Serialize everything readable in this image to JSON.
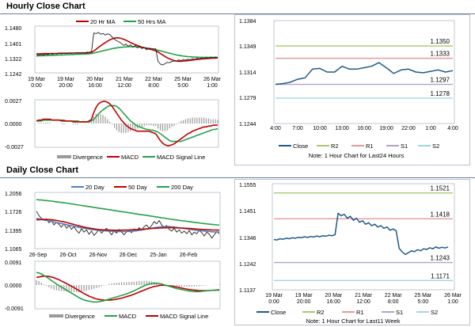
{
  "hourly": {
    "title": "Hourly Close Chart",
    "price": {
      "legend": [
        "20 Hr MA",
        "50 Hrs MA"
      ],
      "y_ticks": [
        "1.1480",
        "1.1401",
        "1.1322",
        "1.1242"
      ],
      "x_ticks": [
        "19 Mar\n0:00",
        "19 Mar\n20:00",
        "20 Mar\n16:00",
        "21 Mar\n12:00",
        "22 Mar\n8:00",
        "25 Mar\n5:00",
        "26 Mar\n1:00"
      ],
      "ylim": [
        1.1242,
        1.148
      ],
      "close": [
        1.1335,
        1.1333,
        1.1336,
        1.1334,
        1.1338,
        1.1336,
        1.134,
        1.1337,
        1.1341,
        1.1339,
        1.1342,
        1.134,
        1.1343,
        1.1341,
        1.1344,
        1.1342,
        1.1345,
        1.1343,
        1.1347,
        1.1344,
        1.1347,
        1.1345,
        1.1349,
        1.1348,
        1.1352,
        1.1452,
        1.1448,
        1.1455,
        1.1445,
        1.1449,
        1.1441,
        1.1447,
        1.1443,
        1.143,
        1.1418,
        1.141,
        1.1404,
        1.1396,
        1.1385,
        1.1392,
        1.138,
        1.1388,
        1.1376,
        1.1384,
        1.1372,
        1.1379,
        1.1368,
        1.1374,
        1.1362,
        1.1369,
        1.1368,
        1.1366,
        1.1367,
        1.13,
        1.1285,
        1.128,
        1.1286,
        1.1294,
        1.1292,
        1.1298,
        1.1302,
        1.13,
        1.1307,
        1.1303,
        1.1309,
        1.1306,
        1.1311,
        1.1308,
        1.1314,
        1.131,
        1.1316,
        1.1313,
        1.1318,
        1.1314,
        1.132,
        1.1316,
        1.1322,
        1.1318,
        1.1322,
        1.132
      ],
      "ma20": [
        1.134,
        1.134,
        1.134,
        1.1341,
        1.1341,
        1.1341,
        1.1341,
        1.1342,
        1.1342,
        1.1342,
        1.1343,
        1.1343,
        1.1343,
        1.1343,
        1.1344,
        1.1344,
        1.1344,
        1.1344,
        1.1345,
        1.1345,
        1.1345,
        1.1345,
        1.1345,
        1.1346,
        1.1348,
        1.1355,
        1.1364,
        1.1374,
        1.1383,
        1.1392,
        1.14,
        1.1408,
        1.1415,
        1.142,
        1.1424,
        1.1426,
        1.1425,
        1.1422,
        1.1418,
        1.1413,
        1.1407,
        1.1401,
        1.1395,
        1.139,
        1.1385,
        1.138,
        1.1376,
        1.1372,
        1.1369,
        1.1366,
        1.1363,
        1.136,
        1.1356,
        1.135,
        1.1342,
        1.1334,
        1.1326,
        1.1319,
        1.1313,
        1.1308,
        1.1304,
        1.1301,
        1.13,
        1.13,
        1.1301,
        1.1302,
        1.1303,
        1.1305,
        1.1306,
        1.1308,
        1.1309,
        1.1311,
        1.1312,
        1.1313,
        1.1314,
        1.1315,
        1.1316,
        1.1317,
        1.1317,
        1.1318
      ],
      "ma50": [
        1.1328,
        1.1329,
        1.1329,
        1.133,
        1.133,
        1.1331,
        1.1331,
        1.1332,
        1.1332,
        1.1333,
        1.1333,
        1.1334,
        1.1334,
        1.1335,
        1.1335,
        1.1336,
        1.1336,
        1.1337,
        1.1337,
        1.1338,
        1.1338,
        1.1339,
        1.1339,
        1.134,
        1.1341,
        1.1344,
        1.1347,
        1.135,
        1.1353,
        1.1356,
        1.1359,
        1.1362,
        1.1365,
        1.1368,
        1.137,
        1.1372,
        1.1374,
        1.1375,
        1.1376,
        1.1377,
        1.1378,
        1.1378,
        1.1378,
        1.1378,
        1.1377,
        1.1376,
        1.1375,
        1.1373,
        1.1371,
        1.1369,
        1.1367,
        1.1365,
        1.1362,
        1.1359,
        1.1356,
        1.1353,
        1.1349,
        1.1346,
        1.1343,
        1.134,
        1.1337,
        1.1334,
        1.1332,
        1.133,
        1.1328,
        1.1326,
        1.1325,
        1.1324,
        1.1323,
        1.1322,
        1.1322,
        1.1321,
        1.1321,
        1.1321,
        1.1321,
        1.1321,
        1.1321,
        1.1321,
        1.1321,
        1.1321
      ]
    },
    "macd": {
      "y_ticks": [
        "0.0027",
        "0.0000",
        "-0.0027"
      ],
      "ylim": [
        -0.0027,
        0.0027
      ],
      "legend": [
        "Divergence",
        "MACD",
        "MACD Signal Line"
      ],
      "macd": [
        0.0003,
        0.0004,
        0.0004,
        0.0005,
        0.0005,
        0.0005,
        0.0005,
        0.0004,
        0.0004,
        0.0004,
        0.0004,
        0.0003,
        0.0003,
        0.0003,
        0.0003,
        0.0003,
        0.0002,
        0.0002,
        0.0002,
        0.0002,
        0.0002,
        0.0002,
        0.0002,
        0.0003,
        0.0005,
        0.0013,
        0.0019,
        0.0023,
        0.0025,
        0.0026,
        0.0026,
        0.0025,
        0.0023,
        0.002,
        0.0016,
        0.0012,
        0.0008,
        0.0004,
        0.0001,
        -0.0002,
        -0.0004,
        -0.0006,
        -0.0007,
        -0.0008,
        -0.0009,
        -0.0009,
        -0.0009,
        -0.0009,
        -0.0009,
        -0.0009,
        -0.001,
        -0.0011,
        -0.0012,
        -0.0016,
        -0.002,
        -0.0023,
        -0.0025,
        -0.0026,
        -0.0026,
        -0.0025,
        -0.0024,
        -0.0022,
        -0.002,
        -0.0018,
        -0.0016,
        -0.0014,
        -0.0012,
        -0.0011,
        -0.0009,
        -0.0008,
        -0.0007,
        -0.0006,
        -0.0005,
        -0.0004,
        -0.0004,
        -0.0003,
        -0.0003,
        -0.0002,
        -0.0002,
        -0.0002
      ],
      "signal": [
        0.0003,
        0.0003,
        0.0003,
        0.0004,
        0.0004,
        0.0004,
        0.0004,
        0.0004,
        0.0004,
        0.0004,
        0.0004,
        0.0004,
        0.0004,
        0.0003,
        0.0003,
        0.0003,
        0.0003,
        0.0003,
        0.0003,
        0.0002,
        0.0002,
        0.0002,
        0.0002,
        0.0002,
        0.0003,
        0.0005,
        0.0008,
        0.0011,
        0.0014,
        0.0016,
        0.0018,
        0.002,
        0.0021,
        0.0021,
        0.0021,
        0.002,
        0.0018,
        0.0015,
        0.0012,
        0.0009,
        0.0006,
        0.0003,
        0.0001,
        -0.0001,
        -0.0003,
        -0.0004,
        -0.0005,
        -0.0006,
        -0.0007,
        -0.0007,
        -0.0008,
        -0.0008,
        -0.0009,
        -0.001,
        -0.0012,
        -0.0014,
        -0.0016,
        -0.0018,
        -0.002,
        -0.0021,
        -0.0021,
        -0.0021,
        -0.0021,
        -0.0021,
        -0.002,
        -0.0019,
        -0.0018,
        -0.0017,
        -0.0016,
        -0.0015,
        -0.0014,
        -0.0013,
        -0.0012,
        -0.0011,
        -0.001,
        -0.0009,
        -0.0008,
        -0.0007,
        -0.0007,
        -0.0006
      ]
    },
    "pivot": {
      "y_ticks": [
        "1.1384",
        "1.1349",
        "1.1314",
        "1.1279",
        "1.1244"
      ],
      "ylim": [
        1.1244,
        1.1384
      ],
      "x_ticks": [
        "4:00",
        "7:00",
        "10:00",
        "13:00",
        "16:00",
        "19:00",
        "22:00",
        "1:00",
        "4:00"
      ],
      "levels": [
        {
          "name": "R2",
          "value": 1.135,
          "label": "1.1350",
          "color": "#a8c96a"
        },
        {
          "name": "R1",
          "value": 1.1333,
          "label": "1.1333",
          "color": "#e69a9a"
        },
        {
          "name": "S1",
          "value": 1.1297,
          "label": "1.1297",
          "color": "#b3a3c9"
        },
        {
          "name": "S2",
          "value": 1.1278,
          "label": "1.1278",
          "color": "#9fd6e6"
        }
      ],
      "close": [
        1.1297,
        1.1298,
        1.13,
        1.1304,
        1.1306,
        1.1318,
        1.1319,
        1.1314,
        1.1314,
        1.1322,
        1.1318,
        1.1318,
        1.132,
        1.1322,
        1.1327,
        1.132,
        1.1312,
        1.1317,
        1.1318,
        1.1314,
        1.1313,
        1.1315,
        1.1317,
        1.1314,
        1.1316
      ],
      "legend": [
        "Close",
        "R2",
        "R1",
        "S1",
        "S2"
      ],
      "note": "Note: 1 Hour Chart for Last24 Hours"
    }
  },
  "daily": {
    "title": "Daily Close Chart",
    "price": {
      "legend": [
        "20 Day",
        "50 Day",
        "200 Day"
      ],
      "y_ticks": [
        "1.2056",
        "1.1726",
        "1.1395",
        "1.1065"
      ],
      "ylim": [
        1.1065,
        1.2056
      ],
      "x_ticks": [
        "26-Sep",
        "26-Oct",
        "26-Nov",
        "26-Dec",
        "25-Jan",
        "26-Feb"
      ],
      "close": [
        1.173,
        1.165,
        1.16,
        1.156,
        1.159,
        1.152,
        1.156,
        1.148,
        1.153,
        1.149,
        1.144,
        1.15,
        1.142,
        1.147,
        1.14,
        1.145,
        1.138,
        1.133,
        1.141,
        1.135,
        1.139,
        1.131,
        1.137,
        1.129,
        1.134,
        1.14,
        1.133,
        1.138,
        1.142,
        1.136,
        1.13,
        1.137,
        1.133,
        1.14,
        1.135,
        1.13,
        1.136,
        1.139,
        1.134,
        1.141,
        1.137,
        1.143,
        1.138,
        1.145,
        1.148,
        1.142,
        1.147,
        1.154,
        1.15,
        1.156,
        1.148,
        1.144,
        1.147,
        1.14,
        1.137,
        1.142,
        1.135,
        1.139,
        1.133,
        1.137,
        1.132,
        1.138,
        1.13,
        1.135,
        1.132,
        1.138,
        1.134,
        1.128,
        1.135,
        1.131,
        1.124,
        1.13,
        1.136,
        1.132
      ],
      "ma20": [
        1.16,
        1.159,
        1.158,
        1.157,
        1.156,
        1.155,
        1.1545,
        1.1535,
        1.1525,
        1.1515,
        1.1505,
        1.1495,
        1.1485,
        1.1475,
        1.1465,
        1.1455,
        1.1445,
        1.1435,
        1.1428,
        1.142,
        1.1412,
        1.1405,
        1.1398,
        1.1392,
        1.1386,
        1.1382,
        1.1378,
        1.1374,
        1.1371,
        1.1368,
        1.1366,
        1.1364,
        1.1362,
        1.1361,
        1.136,
        1.136,
        1.1361,
        1.1363,
        1.1366,
        1.137,
        1.1375,
        1.1381,
        1.1388,
        1.1396,
        1.1404,
        1.1412,
        1.142,
        1.1428,
        1.1436,
        1.1442,
        1.1447,
        1.145,
        1.1451,
        1.145,
        1.1447,
        1.1442,
        1.1436,
        1.1429,
        1.1422,
        1.1415,
        1.1408,
        1.1401,
        1.1395,
        1.1389,
        1.1384,
        1.1379,
        1.1374,
        1.1369,
        1.1365,
        1.1361,
        1.1357,
        1.1354,
        1.1352,
        1.1351
      ],
      "ma50": [
        1.157,
        1.1575,
        1.1578,
        1.158,
        1.158,
        1.1578,
        1.1574,
        1.1569,
        1.1562,
        1.1554,
        1.1545,
        1.1535,
        1.1524,
        1.1512,
        1.15,
        1.1488,
        1.1476,
        1.1464,
        1.1453,
        1.1442,
        1.1432,
        1.1423,
        1.1415,
        1.1408,
        1.1402,
        1.1397,
        1.1393,
        1.139,
        1.1388,
        1.1386,
        1.1385,
        1.1384,
        1.1384,
        1.1384,
        1.1385,
        1.1386,
        1.1388,
        1.139,
        1.1392,
        1.1394,
        1.1397,
        1.14,
        1.1403,
        1.1406,
        1.1409,
        1.1412,
        1.1415,
        1.1418,
        1.1421,
        1.1424,
        1.1426,
        1.1428,
        1.1429,
        1.143,
        1.143,
        1.1429,
        1.1428,
        1.1426,
        1.1424,
        1.1421,
        1.1418,
        1.1415,
        1.1412,
        1.1409,
        1.1406,
        1.1403,
        1.14,
        1.1397,
        1.1394,
        1.1392,
        1.139,
        1.1388,
        1.1386,
        1.1385
      ],
      "ma200": [
        1.194,
        1.1936,
        1.1932,
        1.1927,
        1.1922,
        1.1917,
        1.1912,
        1.1906,
        1.19,
        1.1894,
        1.1888,
        1.1882,
        1.1876,
        1.1869,
        1.1862,
        1.1855,
        1.1848,
        1.1841,
        1.1834,
        1.1827,
        1.182,
        1.1813,
        1.1806,
        1.1799,
        1.1792,
        1.1785,
        1.1778,
        1.1771,
        1.1764,
        1.1757,
        1.175,
        1.1743,
        1.1736,
        1.1729,
        1.1722,
        1.1715,
        1.1708,
        1.1701,
        1.1694,
        1.1687,
        1.168,
        1.1673,
        1.1666,
        1.1659,
        1.1652,
        1.1645,
        1.1638,
        1.1631,
        1.1624,
        1.1617,
        1.161,
        1.1603,
        1.1596,
        1.1589,
        1.1582,
        1.1576,
        1.157,
        1.1564,
        1.1558,
        1.1552,
        1.1546,
        1.154,
        1.1534,
        1.1528,
        1.1522,
        1.1516,
        1.151,
        1.1505,
        1.15,
        1.1495,
        1.149,
        1.1486,
        1.1482,
        1.1478
      ]
    },
    "macd": {
      "y_ticks": [
        "0.0091",
        "0.0000",
        "-0.0091"
      ],
      "ylim": [
        -0.0091,
        0.0091
      ],
      "legend": [
        "Divergence",
        "MACD",
        "MACD Signal Line"
      ],
      "macd": [
        0.005,
        0.0048,
        0.0044,
        0.0038,
        0.0032,
        0.0025,
        0.0018,
        0.0011,
        0.0004,
        -0.0002,
        -0.0008,
        -0.0014,
        -0.002,
        -0.0026,
        -0.0032,
        -0.0038,
        -0.0044,
        -0.005,
        -0.0055,
        -0.0059,
        -0.0062,
        -0.0064,
        -0.0066,
        -0.0067,
        -0.0067,
        -0.0066,
        -0.0064,
        -0.0062,
        -0.0059,
        -0.0056,
        -0.0053,
        -0.005,
        -0.0047,
        -0.0044,
        -0.0041,
        -0.0038,
        -0.0035,
        -0.0031,
        -0.0027,
        -0.0023,
        -0.0018,
        -0.0013,
        -0.0008,
        -0.0003,
        0.0001,
        0.0004,
        0.0006,
        0.0007,
        0.0007,
        0.0006,
        0.0004,
        0.0001,
        -0.0002,
        -0.0005,
        -0.0008,
        -0.0011,
        -0.0014,
        -0.0016,
        -0.0018,
        -0.002,
        -0.0022,
        -0.0024,
        -0.0025,
        -0.0026,
        -0.0026,
        -0.0026,
        -0.0025,
        -0.0024,
        -0.0023,
        -0.0022,
        -0.0021,
        -0.002,
        -0.0019,
        -0.0018
      ],
      "signal": [
        0.003,
        0.0032,
        0.0034,
        0.0035,
        0.0035,
        0.0034,
        0.0032,
        0.0029,
        0.0025,
        0.0021,
        0.0016,
        0.0011,
        0.0006,
        0.0001,
        -0.0005,
        -0.001,
        -0.0016,
        -0.0022,
        -0.0028,
        -0.0034,
        -0.0039,
        -0.0044,
        -0.0048,
        -0.0052,
        -0.0055,
        -0.0057,
        -0.0059,
        -0.006,
        -0.006,
        -0.006,
        -0.0059,
        -0.0058,
        -0.0056,
        -0.0054,
        -0.0052,
        -0.0049,
        -0.0046,
        -0.0043,
        -0.004,
        -0.0036,
        -0.0032,
        -0.0028,
        -0.0024,
        -0.002,
        -0.0016,
        -0.0012,
        -0.0009,
        -0.0006,
        -0.0004,
        -0.0002,
        -0.0001,
        -0.0001,
        -0.0002,
        -0.0003,
        -0.0004,
        -0.0006,
        -0.0008,
        -0.001,
        -0.0012,
        -0.0014,
        -0.0016,
        -0.0018,
        -0.0019,
        -0.002,
        -0.0021,
        -0.0022,
        -0.0022,
        -0.0022,
        -0.0022,
        -0.0022,
        -0.0021,
        -0.0021,
        -0.002,
        -0.002
      ]
    },
    "pivot": {
      "y_ticks": [
        "1.1555",
        "1.1451",
        "1.1346",
        "1.1242",
        "1.1137"
      ],
      "ylim": [
        1.1137,
        1.1555
      ],
      "x_ticks": [
        "19 Mar\n0:00",
        "19 Mar\n20:00",
        "20 Mar\n16:00",
        "21 Mar\n12:00",
        "22 Mar\n8:00",
        "25 Mar\n5:00",
        "26 Mar\n1:00"
      ],
      "levels": [
        {
          "name": "R2",
          "value": 1.1521,
          "label": "1.1521",
          "color": "#a8c96a"
        },
        {
          "name": "R1",
          "value": 1.1418,
          "label": "1.1418",
          "color": "#e69a9a"
        },
        {
          "name": "S1",
          "value": 1.1243,
          "label": "1.1243",
          "color": "#b3a3c9"
        },
        {
          "name": "S2",
          "value": 1.1171,
          "label": "1.1171",
          "color": "#9fd6e6"
        }
      ],
      "close": [
        1.1335,
        1.1333,
        1.1338,
        1.1336,
        1.134,
        1.1338,
        1.1342,
        1.134,
        1.1344,
        1.1342,
        1.1346,
        1.1343,
        1.1347,
        1.1345,
        1.1349,
        1.1346,
        1.135,
        1.1348,
        1.1352,
        1.135,
        1.1354,
        1.144,
        1.143,
        1.1436,
        1.142,
        1.1428,
        1.1412,
        1.142,
        1.1404,
        1.141,
        1.1396,
        1.1402,
        1.139,
        1.1396,
        1.1385,
        1.139,
        1.138,
        1.1385,
        1.1372,
        1.1377,
        1.137,
        1.13,
        1.1285,
        1.1275,
        1.1282,
        1.129,
        1.1286,
        1.1294,
        1.129,
        1.1298,
        1.1295,
        1.1302,
        1.1298,
        1.1305,
        1.13,
        1.1304,
        1.1301,
        1.1305
      ],
      "legend": [
        "Close",
        "R2",
        "R1",
        "S1",
        "S2"
      ],
      "note": "Note: 1 Hour Chart for Last11 Week"
    }
  },
  "colors": {
    "close": "#1f5a8a",
    "price_close": "#222222",
    "ma_short": "#c00000",
    "ma_long": "#24a24a",
    "ma20_daily": "#4f81bd",
    "divergence": "#9a9a9a",
    "macd": "#c00000",
    "signal": "#24a24a",
    "panel_border": "#b9c3d0",
    "section_bar": "#6d7f99"
  }
}
